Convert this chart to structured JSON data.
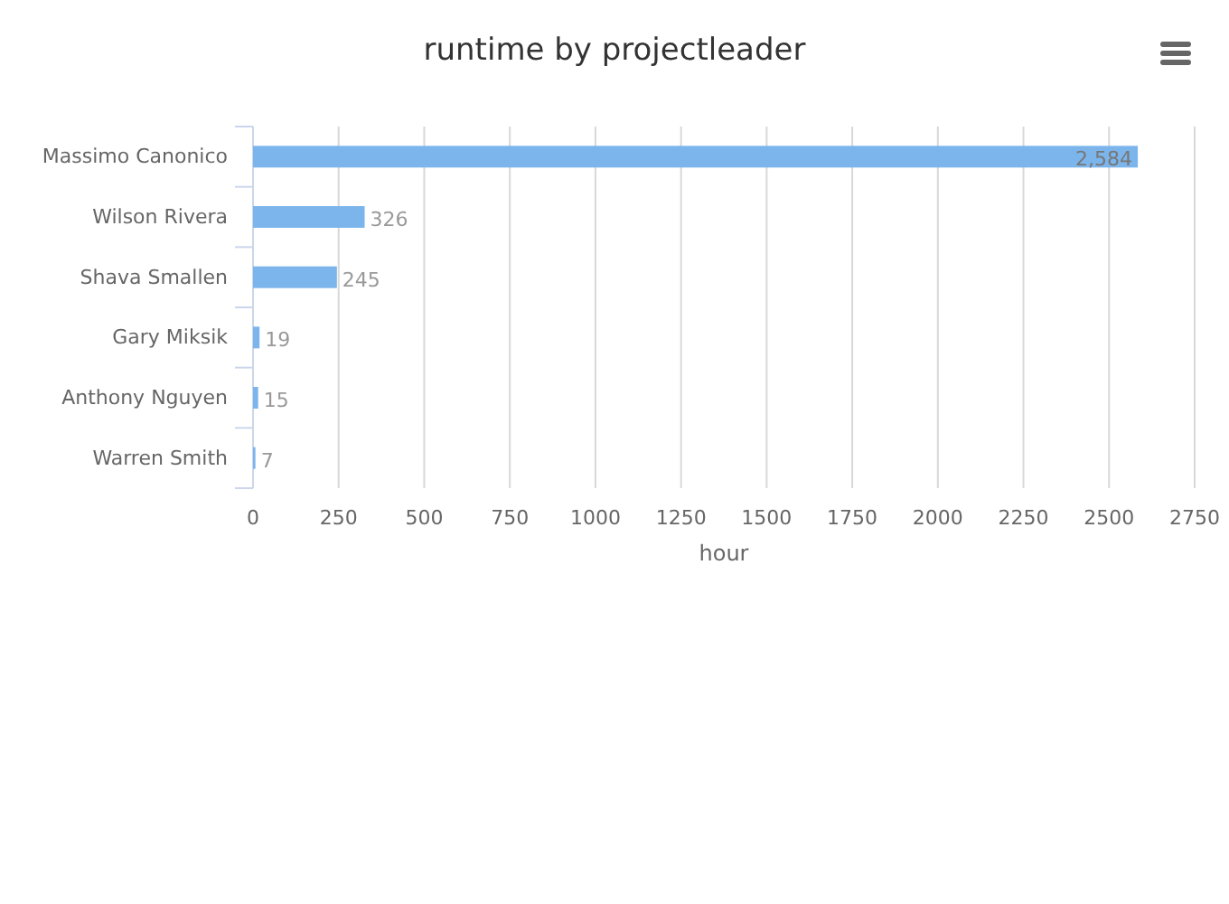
{
  "chart_data": {
    "type": "bar",
    "orientation": "horizontal",
    "title": "runtime by projectleader",
    "xlabel": "hour",
    "categories": [
      "Massimo Canonico",
      "Wilson Rivera",
      "Shava Smallen",
      "Gary Miksik",
      "Anthony Nguyen",
      "Warren Smith"
    ],
    "values": [
      2584,
      326,
      245,
      19,
      15,
      7
    ],
    "value_labels": [
      "2,584",
      "326",
      "245",
      "19",
      "15",
      "7"
    ],
    "color": "#7cb5ec",
    "xlim": [
      0,
      2750
    ],
    "xticks": [
      0,
      250,
      500,
      750,
      1000,
      1250,
      1500,
      1750,
      2000,
      2250,
      2500,
      2750
    ],
    "grid": "x"
  }
}
